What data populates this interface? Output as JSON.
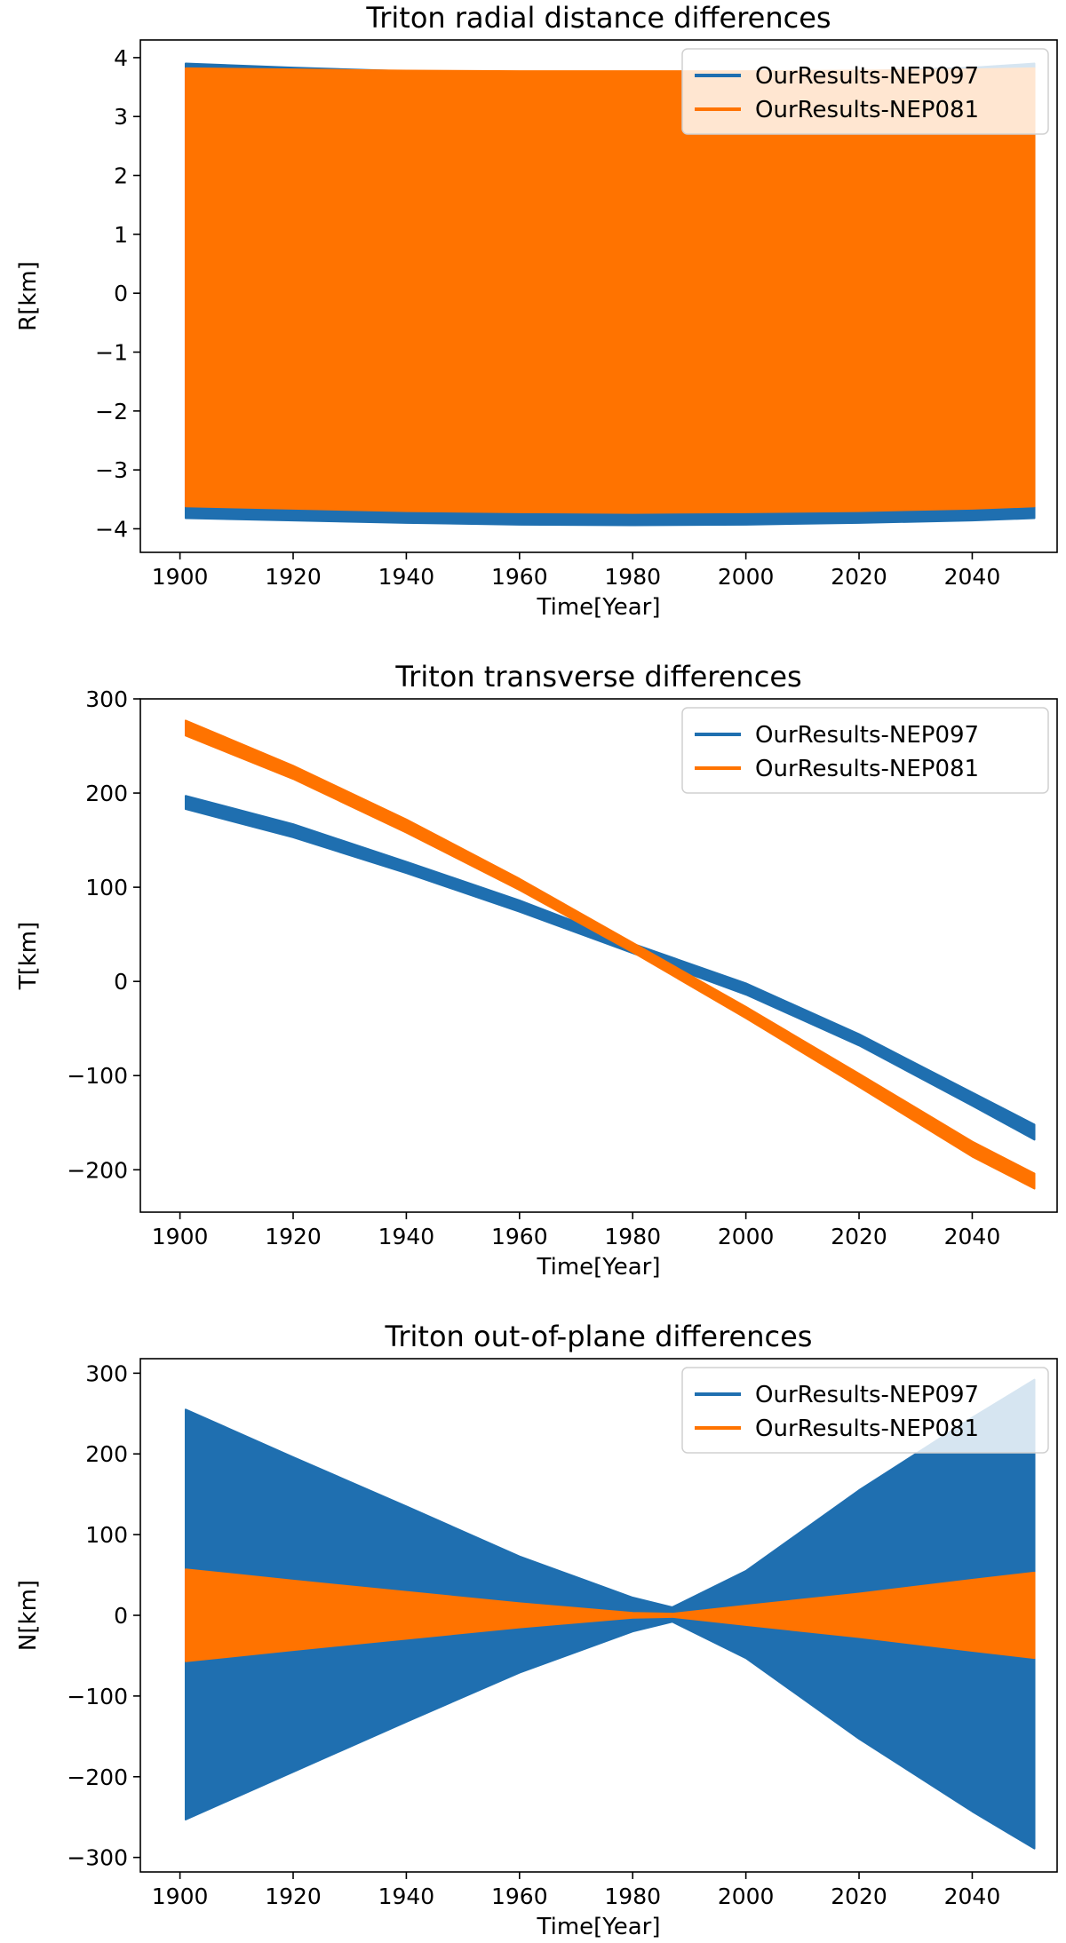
{
  "colors": {
    "nep097": "#1f6fb0",
    "nep081": "#ff7300",
    "axis": "#000000",
    "background": "#ffffff"
  },
  "chart_data": [
    {
      "type": "area",
      "title": "Triton radial distance differences",
      "xlabel": "Time[Year]",
      "ylabel": "R[km]",
      "xlim": [
        1893,
        2055
      ],
      "ylim": [
        -4.4,
        4.3
      ],
      "xticks": [
        1900,
        1920,
        1940,
        1960,
        1980,
        2000,
        2020,
        2040
      ],
      "xtick_labels": [
        "1900",
        "1920",
        "1940",
        "1960",
        "1980",
        "2000",
        "2020",
        "2040"
      ],
      "yticks": [
        4,
        3,
        2,
        1,
        0,
        -1,
        -2,
        -3,
        -4
      ],
      "ytick_labels": [
        "4",
        "3",
        "2",
        "1",
        "0",
        "−1",
        "−2",
        "−3",
        "−4"
      ],
      "legend": "top-right",
      "series": [
        {
          "name": "OurResults-NEP097",
          "color": "#1f6fb0",
          "kind": "envelope",
          "x": [
            1901,
            1920,
            1940,
            1960,
            1980,
            2000,
            2020,
            2040,
            2051
          ],
          "upper": [
            3.9,
            3.83,
            3.77,
            3.74,
            3.73,
            3.74,
            3.77,
            3.83,
            3.9
          ],
          "lower": [
            -3.82,
            -3.86,
            -3.9,
            -3.93,
            -3.94,
            -3.93,
            -3.9,
            -3.86,
            -3.82
          ]
        },
        {
          "name": "OurResults-NEP081",
          "color": "#ff7300",
          "kind": "envelope",
          "x": [
            1901,
            1920,
            1940,
            1960,
            1980,
            2000,
            2020,
            2040,
            2051
          ],
          "upper": [
            3.82,
            3.8,
            3.78,
            3.77,
            3.77,
            3.77,
            3.78,
            3.8,
            3.82
          ],
          "lower": [
            -3.62,
            -3.66,
            -3.7,
            -3.72,
            -3.73,
            -3.72,
            -3.7,
            -3.66,
            -3.62
          ]
        }
      ]
    },
    {
      "type": "line",
      "title": "Triton transverse differences",
      "xlabel": "Time[Year]",
      "ylabel": "T[km]",
      "xlim": [
        1893,
        2055
      ],
      "ylim": [
        -245,
        300
      ],
      "xticks": [
        1900,
        1920,
        1940,
        1960,
        1980,
        2000,
        2020,
        2040
      ],
      "xtick_labels": [
        "1900",
        "1920",
        "1940",
        "1960",
        "1980",
        "2000",
        "2020",
        "2040"
      ],
      "yticks": [
        300,
        200,
        100,
        0,
        -100,
        -200
      ],
      "ytick_labels": [
        "300",
        "200",
        "100",
        "0",
        "−100",
        "−200"
      ],
      "legend": "top-right",
      "series": [
        {
          "name": "OurResults-NEP097",
          "color": "#1f6fb0",
          "kind": "band",
          "x": [
            1901,
            1920,
            1940,
            1960,
            1980,
            2000,
            2020,
            2040,
            2051
          ],
          "mid": [
            190,
            160,
            121,
            80,
            35,
            -8,
            -62,
            -125,
            -160
          ],
          "half_width": [
            7,
            7,
            6,
            6,
            5,
            6,
            6,
            7,
            8
          ]
        },
        {
          "name": "OurResults-NEP081",
          "color": "#ff7300",
          "kind": "band",
          "x": [
            1901,
            1920,
            1940,
            1960,
            1980,
            2000,
            2020,
            2040,
            2051
          ],
          "mid": [
            269,
            222,
            165,
            103,
            36,
            -33,
            -105,
            -178,
            -212
          ],
          "half_width": [
            8,
            7,
            7,
            6,
            5,
            6,
            7,
            8,
            8
          ]
        }
      ]
    },
    {
      "type": "area",
      "title": "Triton out-of-plane differences",
      "xlabel": "Time[Year]",
      "ylabel": "N[km]",
      "xlim": [
        1893,
        2055
      ],
      "ylim": [
        -318,
        318
      ],
      "xticks": [
        1900,
        1920,
        1940,
        1960,
        1980,
        2000,
        2020,
        2040
      ],
      "xtick_labels": [
        "1900",
        "1920",
        "1940",
        "1960",
        "1980",
        "2000",
        "2020",
        "2040"
      ],
      "yticks": [
        300,
        200,
        100,
        0,
        -100,
        -200,
        -300
      ],
      "ytick_labels": [
        "300",
        "200",
        "100",
        "0",
        "−100",
        "−200",
        "−300"
      ],
      "legend": "top-right",
      "series": [
        {
          "name": "OurResults-NEP097",
          "color": "#1f6fb0",
          "kind": "envelope",
          "x": [
            1901,
            1920,
            1940,
            1960,
            1980,
            1987,
            2000,
            2020,
            2040,
            2051
          ],
          "upper": [
            255,
            196,
            135,
            73,
            22,
            10,
            55,
            155,
            245,
            292
          ],
          "lower": [
            -253,
            -194,
            -132,
            -71,
            -20,
            -8,
            -53,
            -153,
            -243,
            -289
          ]
        },
        {
          "name": "OurResults-NEP081",
          "color": "#ff7300",
          "kind": "envelope",
          "x": [
            1901,
            1920,
            1940,
            1960,
            1980,
            1987,
            2000,
            2020,
            2040,
            2051
          ],
          "upper": [
            57,
            43,
            29,
            15,
            3,
            2,
            12,
            27,
            44,
            53
          ],
          "lower": [
            -57,
            -43,
            -29,
            -15,
            -3,
            -2,
            -12,
            -27,
            -44,
            -53
          ]
        }
      ]
    }
  ]
}
